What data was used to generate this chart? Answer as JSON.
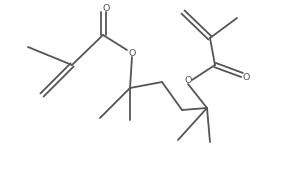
{
  "bg_color": "#ffffff",
  "line_color": "#555555",
  "line_width": 1.3,
  "figsize": [
    2.84,
    1.85
  ],
  "dpi": 100,
  "o_fontsize": 6.8,
  "xlim": [
    0,
    284
  ],
  "ylim": [
    0,
    185
  ]
}
